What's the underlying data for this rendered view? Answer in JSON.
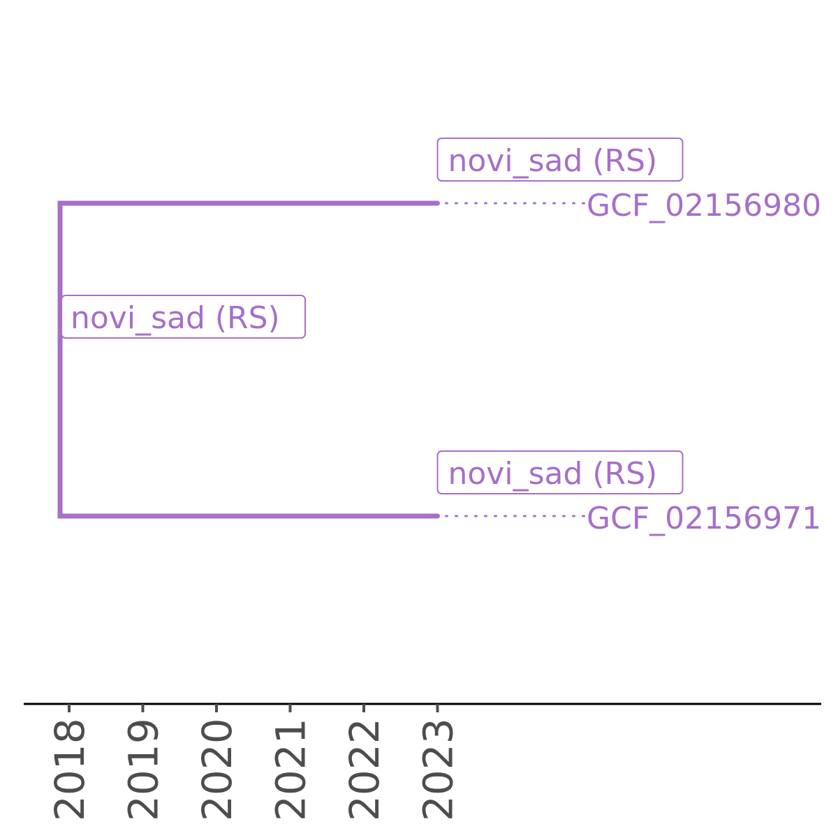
{
  "tree": {
    "color": "#a66fc8",
    "nodes": [
      {
        "id": "root",
        "label": "novi_sad (RS)",
        "date": 2017.85
      },
      {
        "id": "tip-1",
        "parent": "root",
        "label": "novi_sad (RS)",
        "tip_label": "GCF_02156980",
        "date": 2023.0
      },
      {
        "id": "tip-2",
        "parent": "root",
        "label": "novi_sad (RS)",
        "tip_label": "GCF_02156971",
        "date": 2023.0
      }
    ]
  },
  "axis": {
    "ticks": [
      "2018",
      "2019",
      "2020",
      "2021",
      "2022",
      "2023"
    ],
    "tick_color": "#4d4d4d",
    "line_color": "#000000"
  }
}
